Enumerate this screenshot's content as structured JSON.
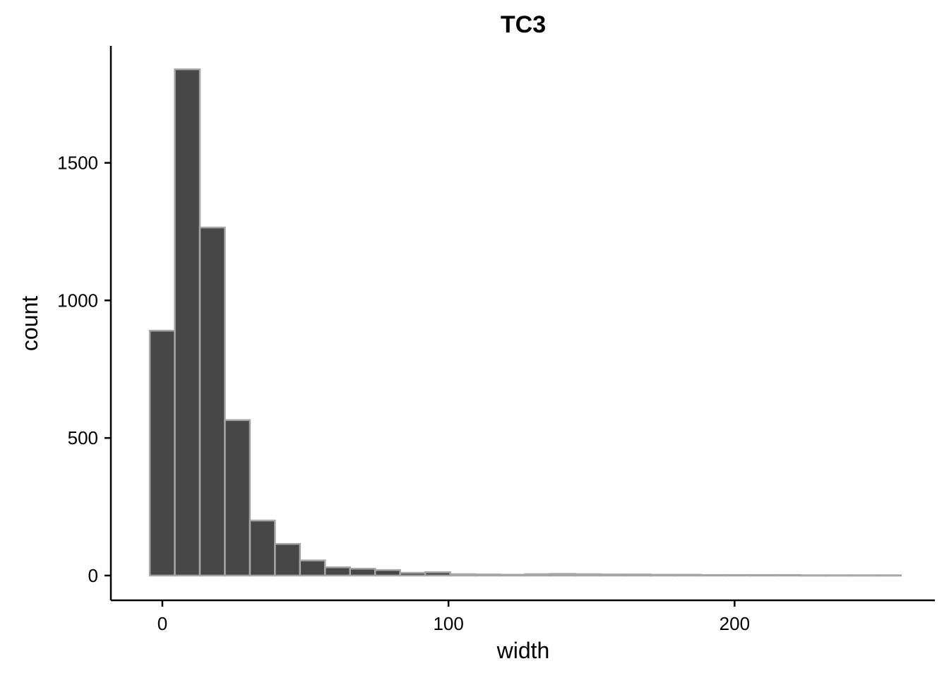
{
  "chart_data": {
    "type": "bar",
    "title": "TC3",
    "xlabel": "width",
    "ylabel": "count",
    "xlim": [
      -18,
      270
    ],
    "ylim": [
      -90,
      1925
    ],
    "xticks": [
      0,
      100,
      200
    ],
    "yticks": [
      0,
      500,
      1000,
      1500
    ],
    "bin_width": 8.75,
    "bin_start": -4.4,
    "values": [
      890,
      1840,
      1265,
      565,
      200,
      115,
      55,
      30,
      25,
      20,
      10,
      12,
      5,
      4,
      3,
      5,
      6,
      5,
      4,
      4,
      3,
      3,
      2,
      2,
      2,
      2,
      1,
      1,
      1,
      1
    ],
    "fill_color": "#474747",
    "edge_color": "#a6a6a6",
    "grid": false
  }
}
